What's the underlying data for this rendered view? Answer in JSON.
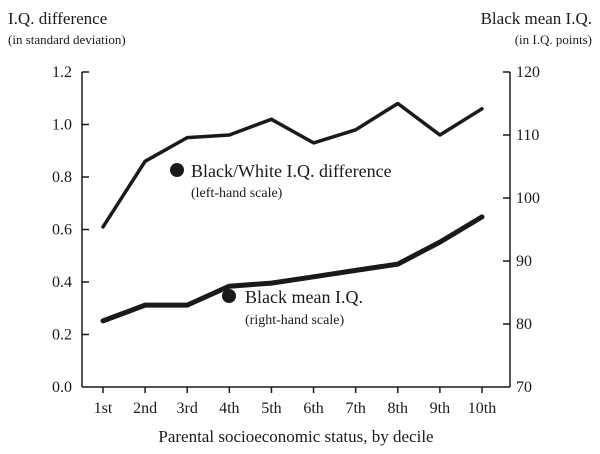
{
  "chart_data": {
    "type": "line",
    "categories": [
      "1st",
      "2nd",
      "3rd",
      "4th",
      "5th",
      "6th",
      "7th",
      "8th",
      "9th",
      "10th"
    ],
    "xlabel": "Parental socioeconomic status, by decile",
    "left_axis": {
      "title": "I.Q. difference",
      "subtitle": "(in standard deviation)",
      "ylim": [
        0,
        1.2
      ],
      "ticks": [
        "0.0",
        "0.2",
        "0.4",
        "0.6",
        "0.8",
        "1.0",
        "1.2"
      ],
      "tick_values": [
        0,
        0.2,
        0.4,
        0.6,
        0.8,
        1.0,
        1.2
      ]
    },
    "right_axis": {
      "title": "Black mean I.Q.",
      "subtitle": "(in I.Q. points)",
      "ylim": [
        70,
        120
      ],
      "ticks": [
        "70",
        "80",
        "90",
        "100",
        "110",
        "120"
      ],
      "tick_values": [
        70,
        80,
        90,
        100,
        110,
        120
      ]
    },
    "series": [
      {
        "name": "Black/White I.Q. difference",
        "note": "(left-hand scale)",
        "axis": "left",
        "values": [
          0.61,
          0.86,
          0.95,
          0.96,
          1.02,
          0.93,
          0.98,
          1.08,
          0.96,
          1.06
        ]
      },
      {
        "name": "Black mean I.Q.",
        "note": "(right-hand scale)",
        "axis": "right",
        "values": [
          80.5,
          83,
          83,
          86,
          86.5,
          87.5,
          88.5,
          89.5,
          93,
          97
        ]
      }
    ],
    "grid": false,
    "colors": {
      "line": "#1a1a1a",
      "marker": "#1a1a1a"
    }
  }
}
